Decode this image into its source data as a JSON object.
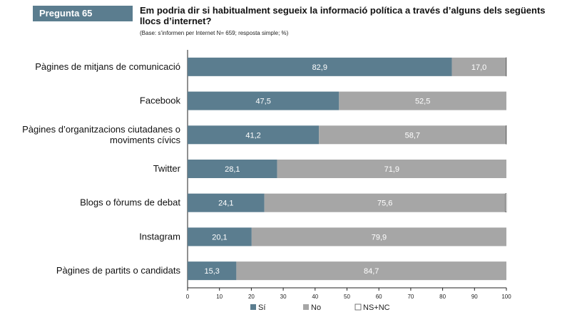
{
  "header": {
    "badge": "Pregunta 65",
    "title": "Em podria dir si habitualment segueix la informació política a través d’alguns dels següents llocs d’internet?",
    "base": "(Base: s’informen per Internet N= 659; resposta simple; %)"
  },
  "chart_data": {
    "type": "bar",
    "orientation": "horizontal",
    "stacked": true,
    "categories": [
      [
        "Pàgines de mitjans de comunicació"
      ],
      [
        "Facebook"
      ],
      [
        "Pàgines d’organitzacions ciutadanes o",
        "moviments cívics"
      ],
      [
        "Twitter"
      ],
      [
        "Blogs o fòrums de debat"
      ],
      [
        "Instagram"
      ],
      [
        "Pàgines de partits o candidats"
      ]
    ],
    "series": [
      {
        "name": "Sí",
        "color": "#5b7d8f",
        "values": [
          82.9,
          47.5,
          41.2,
          28.1,
          24.1,
          20.1,
          15.3
        ],
        "labels": [
          "82,9",
          "47,5",
          "41,2",
          "28,1",
          "24,1",
          "20,1",
          "15,3"
        ]
      },
      {
        "name": "No",
        "color": "#a6a6a6",
        "values": [
          17.0,
          52.5,
          58.7,
          71.9,
          75.6,
          79.9,
          84.7
        ],
        "labels": [
          "17,0",
          "52,5",
          "58,7",
          "71,9",
          "75,6",
          "79,9",
          "84,7"
        ]
      },
      {
        "name": "NS+NC",
        "color": "#ffffff",
        "values": [
          0.1,
          0.0,
          0.1,
          0.0,
          0.3,
          0.0,
          0.0
        ],
        "labels": [
          "",
          "",
          "",
          "",
          "",
          "",
          ""
        ]
      }
    ],
    "xlim": [
      0,
      100
    ],
    "xticks": [
      "0",
      "10",
      "20",
      "30",
      "40",
      "50",
      "60",
      "70",
      "80",
      "90",
      "100"
    ],
    "legend": "bottom"
  }
}
